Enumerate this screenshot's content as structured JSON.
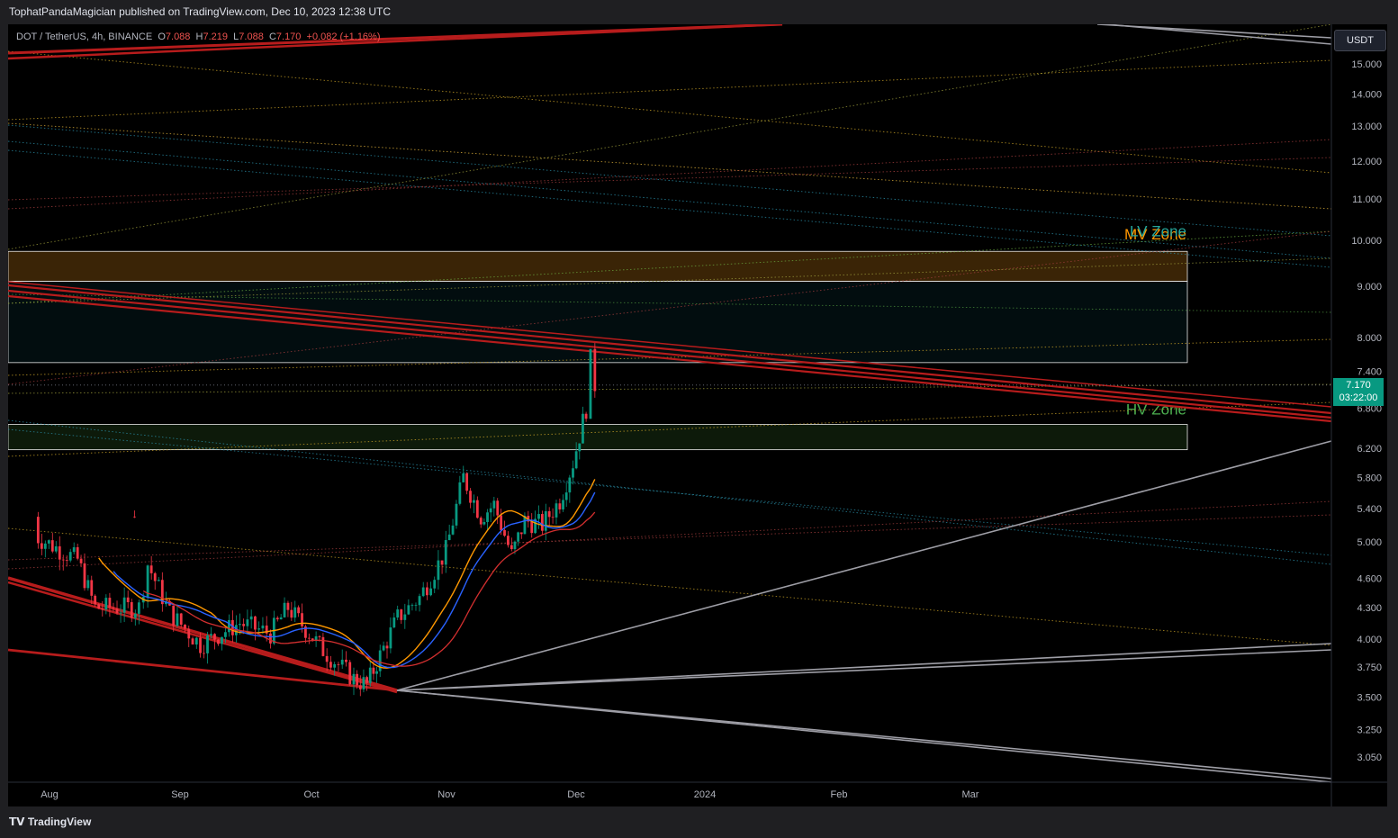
{
  "header": {
    "published_by": "TophatPandaMagician published on TradingView.com, Dec 10, 2023 12:38 UTC"
  },
  "legend": {
    "symbol": "DOT / TetherUS, 4h, BINANCE",
    "open_label": "O",
    "open": "7.088",
    "high_label": "H",
    "high": "7.219",
    "low_label": "L",
    "low": "7.088",
    "close_label": "C",
    "close": "7.170",
    "change": "+0.082 (+1.16%)"
  },
  "currency_button": "USDT",
  "last_price": {
    "price": "7.170",
    "countdown": "03:22:00"
  },
  "footer": {
    "brand": "TradingView"
  },
  "colors": {
    "up": "#089981",
    "down": "#f23645",
    "trendline": "#b71c1c",
    "support_line": "#9e9ea6",
    "mv_zone": "#ff9800",
    "lv_zone": "#26a69a",
    "hv_zone": "#4caf50"
  },
  "chart_data": {
    "type": "candlestick",
    "symbol": "DOT / TetherUS",
    "interval": "4h",
    "exchange": "BINANCE",
    "y_scale": "log",
    "y_ticks": [
      "15.000",
      "14.000",
      "13.000",
      "12.000",
      "11.000",
      "10.000",
      "9.000",
      "8.000",
      "7.400",
      "6.800",
      "6.200",
      "5.800",
      "5.400",
      "5.000",
      "4.600",
      "4.300",
      "4.000",
      "3.750",
      "3.500",
      "3.250",
      "3.050"
    ],
    "x_ticks": [
      "Aug",
      "Sep",
      "Oct",
      "Nov",
      "Dec",
      "2024",
      "Feb",
      "Mar"
    ],
    "price_path": [
      [
        "Jul 28",
        5.3
      ],
      [
        "Aug 5",
        5.05
      ],
      [
        "Aug 14",
        4.8
      ],
      [
        "Aug 18",
        4.3
      ],
      [
        "Aug 28",
        4.3
      ],
      [
        "Aug 30",
        4.75
      ],
      [
        "Sep 4",
        4.25
      ],
      [
        "Sep 11",
        3.95
      ],
      [
        "Sep 20",
        4.15
      ],
      [
        "Sep 27",
        4.05
      ],
      [
        "Oct 1",
        4.3
      ],
      [
        "Oct 9",
        3.9
      ],
      [
        "Oct 16",
        3.65
      ],
      [
        "Oct 19",
        3.6
      ],
      [
        "Oct 22",
        3.85
      ],
      [
        "Oct 26",
        4.2
      ],
      [
        "Oct 31",
        4.4
      ],
      [
        "Nov 6",
        4.9
      ],
      [
        "Nov 10",
        5.8
      ],
      [
        "Nov 14",
        5.3
      ],
      [
        "Nov 17",
        5.45
      ],
      [
        "Nov 21",
        4.85
      ],
      [
        "Nov 24",
        5.25
      ],
      [
        "Nov 28",
        5.2
      ],
      [
        "Dec 2",
        5.5
      ],
      [
        "Dec 5",
        6.0
      ],
      [
        "Dec 8",
        6.8
      ],
      [
        "Dec 9",
        7.6
      ],
      [
        "Dec 10",
        7.17
      ]
    ],
    "zones": [
      {
        "name": "MV Zone",
        "from": 9.1,
        "to": 9.75
      },
      {
        "name": "LV Zone",
        "from": 7.55,
        "to": 9.1
      },
      {
        "name": "HV Zone",
        "from": 6.18,
        "to": 6.55
      }
    ],
    "last_price": 7.17
  }
}
